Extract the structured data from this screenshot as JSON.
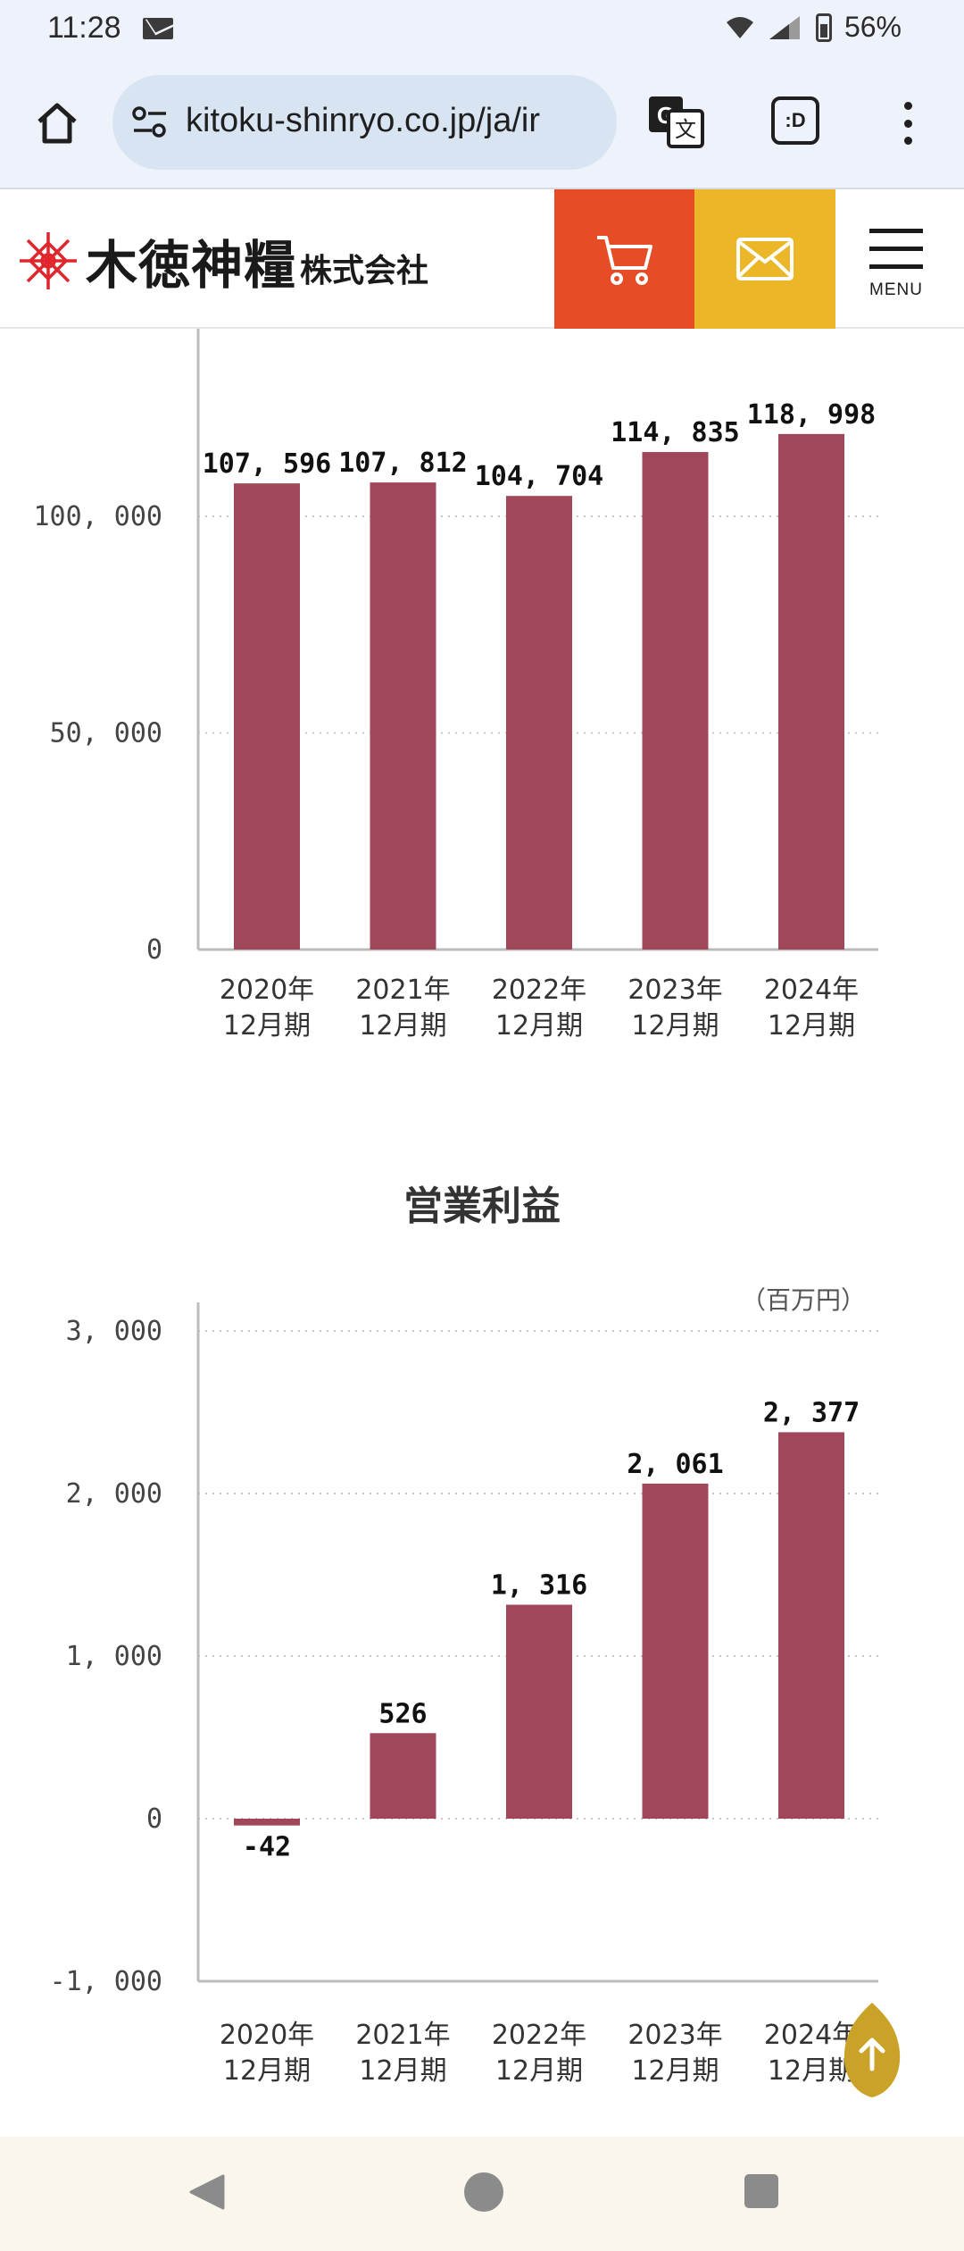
{
  "status_bar": {
    "time": "11:28",
    "battery": "56%"
  },
  "browser": {
    "url": "kitoku-shinryo.co.jp/ja/ir",
    "tabs_label": ":D"
  },
  "site": {
    "logo_name": "木徳神糧",
    "logo_corp": "株式会社",
    "menu_label": "MENU",
    "colors": {
      "cart": "#e64d27",
      "mail": "#ebb627",
      "bar": "#a0475a"
    }
  },
  "chart_data": [
    {
      "type": "bar",
      "title": "",
      "categories": [
        "2020年\n12月期",
        "2021年\n12月期",
        "2022年\n12月期",
        "2023年\n12月期",
        "2024年\n12月期"
      ],
      "values": [
        107596,
        107812,
        104704,
        114835,
        118998
      ],
      "value_labels": [
        "107, 596",
        "107, 812",
        "104, 704",
        "114, 835",
        "118, 998"
      ],
      "y_ticks": [
        0,
        50000,
        100000
      ],
      "y_tick_labels": [
        "0",
        "50, 000",
        "100, 000"
      ],
      "ylim": [
        0,
        100000
      ],
      "grid": true,
      "legend": "none"
    },
    {
      "type": "bar",
      "title": "営業利益",
      "unit": "（百万円）",
      "categories": [
        "2020年\n12月期",
        "2021年\n12月期",
        "2022年\n12月期",
        "2023年\n12月期",
        "2024年\n12月期"
      ],
      "values": [
        -42,
        526,
        1316,
        2061,
        2377
      ],
      "value_labels": [
        "-42",
        "526",
        "1, 316",
        "2, 061",
        "2, 377"
      ],
      "y_ticks": [
        -1000,
        0,
        1000,
        2000,
        3000
      ],
      "y_tick_labels": [
        "-1, 000",
        "0",
        "1, 000",
        "2, 000",
        "3, 000"
      ],
      "ylim": [
        -1000,
        3000
      ],
      "grid": true,
      "legend": "none"
    }
  ]
}
